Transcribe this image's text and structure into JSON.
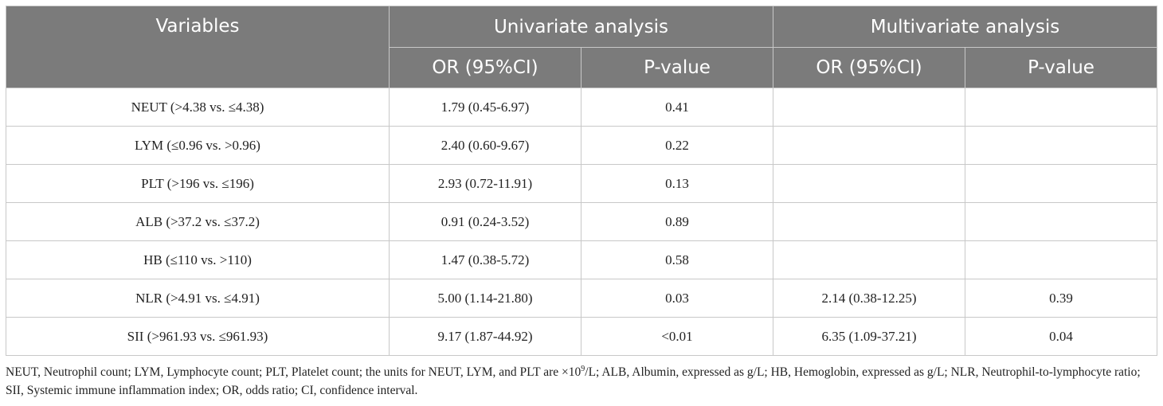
{
  "table": {
    "header_variables": "Variables",
    "header_univariate": "Univariate analysis",
    "header_multivariate": "Multivariate analysis",
    "sub_headers": [
      "OR (95%CI)",
      "P-value",
      "OR (95%CI)",
      "P-value"
    ],
    "rows": [
      {
        "variable": "NEUT (>4.38 vs. ≤4.38)",
        "uni_or": "1.79 (0.45-6.97)",
        "uni_p": "0.41",
        "multi_or": "",
        "multi_p": ""
      },
      {
        "variable": "LYM (≤0.96 vs. >0.96)",
        "uni_or": "2.40 (0.60-9.67)",
        "uni_p": "0.22",
        "multi_or": "",
        "multi_p": ""
      },
      {
        "variable": "PLT (>196 vs. ≤196)",
        "uni_or": "2.93 (0.72-11.91)",
        "uni_p": "0.13",
        "multi_or": "",
        "multi_p": ""
      },
      {
        "variable": "ALB (>37.2 vs. ≤37.2)",
        "uni_or": "0.91 (0.24-3.52)",
        "uni_p": "0.89",
        "multi_or": "",
        "multi_p": ""
      },
      {
        "variable": "HB (≤110 vs. >110)",
        "uni_or": "1.47 (0.38-5.72)",
        "uni_p": "0.58",
        "multi_or": "",
        "multi_p": ""
      },
      {
        "variable": "NLR (>4.91 vs. ≤4.91)",
        "uni_or": "5.00 (1.14-21.80)",
        "uni_p": "0.03",
        "multi_or": "2.14 (0.38-12.25)",
        "multi_p": "0.39"
      },
      {
        "variable": "SII (>961.93 vs. ≤961.93)",
        "uni_or": "9.17 (1.87-44.92)",
        "uni_p": "<0.01",
        "multi_or": "6.35 (1.09-37.21)",
        "multi_p": "0.04"
      }
    ]
  },
  "footnote": {
    "part1": "NEUT, Neutrophil count; LYM, Lymphocyte count; PLT, Platelet count; the units for NEUT, LYM, and PLT are ×10",
    "sup": "9",
    "part2": "/L; ALB, Albumin, expressed as g/L; HB, Hemoglobin, expressed as g/L; NLR, Neutrophil-to-lymphocyte ratio; SII, Systemic immune inflammation index; OR, odds ratio; CI, confidence interval."
  }
}
